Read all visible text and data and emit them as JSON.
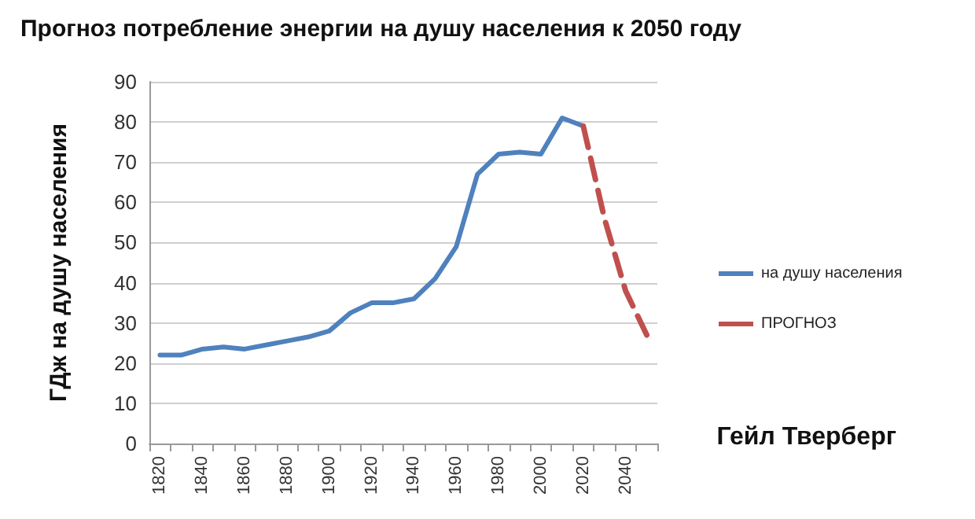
{
  "chart_data": {
    "type": "line",
    "title": "Прогноз потребление энергии на душу населения к 2050 году",
    "ylabel": "ГДж на душу населения",
    "categories": [
      "1820",
      null,
      "1840",
      null,
      "1860",
      null,
      "1880",
      null,
      "1900",
      null,
      "1920",
      null,
      "1940",
      null,
      "1960",
      null,
      "1980",
      null,
      "2000",
      null,
      "2020",
      null,
      "2040",
      null
    ],
    "series": [
      {
        "name": "на душу населения",
        "color": "#4f81bd",
        "line_style": "solid",
        "values": [
          22,
          22,
          23.5,
          24,
          23.5,
          24.5,
          25.5,
          26.5,
          28,
          32.5,
          35,
          35,
          36,
          41,
          49,
          67,
          72,
          72.5,
          72,
          81,
          79,
          null,
          null,
          null
        ]
      },
      {
        "name": "ПРОГНОЗ",
        "color": "#c0504d",
        "line_style": "dashed",
        "values": [
          null,
          null,
          null,
          null,
          null,
          null,
          null,
          null,
          null,
          null,
          null,
          null,
          null,
          null,
          null,
          null,
          null,
          null,
          null,
          null,
          79,
          56,
          38,
          27
        ]
      }
    ],
    "ylim": [
      0,
      90
    ],
    "yticks": [
      0,
      10,
      20,
      30,
      40,
      50,
      60,
      70,
      80,
      90
    ],
    "grid": "y",
    "legend": "right",
    "marker": "none",
    "annotations": [
      "Гейл Тверберг"
    ]
  }
}
